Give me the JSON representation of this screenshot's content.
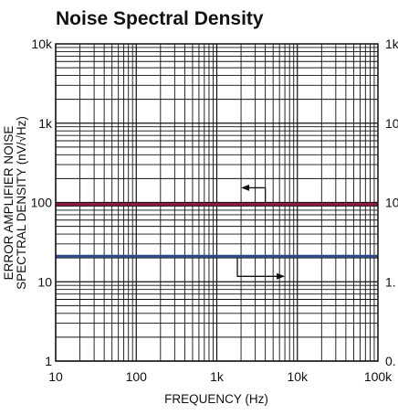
{
  "chart_data": {
    "type": "line",
    "title": "Noise Spectral Density",
    "xlabel": "FREQUENCY (Hz)",
    "ylabel": [
      "ERROR AMPLIFIER NOISE",
      "SPECTRAL DENSITY (nV/√Hz)"
    ],
    "x_scale": "log",
    "y_scale": "log",
    "xlim": [
      10,
      100000
    ],
    "ylim": [
      1,
      10000
    ],
    "x_ticks": [
      "10",
      "100",
      "1k",
      "10k",
      "100k"
    ],
    "y_ticks": [
      "1",
      "10",
      "100",
      "1k",
      "10k"
    ],
    "y2_ticks": [
      "0.",
      "1.",
      "10",
      "10",
      "1k"
    ],
    "grid": true,
    "series": [
      {
        "axis": "left",
        "x": [
          10,
          100000
        ],
        "values": [
          95,
          95
        ],
        "color": "#8b1a3c"
      },
      {
        "axis": "right",
        "x": [
          10,
          100000
        ],
        "values": [
          2.1,
          2.1
        ],
        "color": "#2c4a8a"
      }
    ]
  }
}
